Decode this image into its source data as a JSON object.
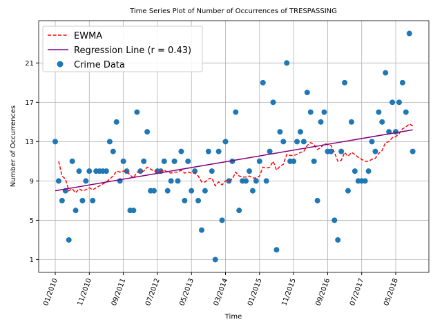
{
  "chart_data": {
    "type": "line",
    "title": "Time Series Plot of Number of Occurrences of TRESPASSING",
    "xlabel": "Time",
    "ylabel": "Number of Occurrences",
    "x": [
      "01/2010",
      "02/2010",
      "03/2010",
      "04/2010",
      "05/2010",
      "06/2010",
      "07/2010",
      "08/2010",
      "09/2010",
      "10/2010",
      "11/2010",
      "12/2010",
      "01/2011",
      "02/2011",
      "03/2011",
      "04/2011",
      "05/2011",
      "06/2011",
      "07/2011",
      "08/2011",
      "09/2011",
      "10/2011",
      "11/2011",
      "12/2011",
      "01/2012",
      "02/2012",
      "03/2012",
      "04/2012",
      "05/2012",
      "06/2012",
      "07/2012",
      "08/2012",
      "09/2012",
      "10/2012",
      "11/2012",
      "12/2012",
      "01/2013",
      "02/2013",
      "03/2013",
      "04/2013",
      "05/2013",
      "06/2013",
      "07/2013",
      "08/2013",
      "09/2013",
      "10/2013",
      "11/2013",
      "12/2013",
      "01/2014",
      "02/2014",
      "03/2014",
      "04/2014",
      "05/2014",
      "06/2014",
      "07/2014",
      "08/2014",
      "09/2014",
      "10/2014",
      "11/2014",
      "12/2014",
      "01/2015",
      "02/2015",
      "03/2015",
      "04/2015",
      "05/2015",
      "06/2015",
      "07/2015",
      "08/2015",
      "09/2015",
      "10/2015",
      "11/2015",
      "12/2015",
      "01/2016",
      "02/2016",
      "03/2016",
      "04/2016",
      "05/2016",
      "06/2016",
      "07/2016",
      "08/2016",
      "09/2016",
      "10/2016",
      "11/2016",
      "12/2016",
      "01/2017",
      "02/2017",
      "03/2017",
      "04/2017",
      "05/2017",
      "06/2017",
      "07/2017",
      "08/2017",
      "09/2017",
      "10/2017",
      "11/2017",
      "12/2017",
      "01/2018",
      "02/2018",
      "03/2018",
      "04/2018",
      "05/2018",
      "06/2018",
      "07/2018",
      "08/2018",
      "09/2018",
      "10/2018"
    ],
    "series": [
      {
        "name": "EWMA",
        "type": "line",
        "dash": true,
        "color": "#ff0000",
        "values": [
          null,
          11.0,
          9.5,
          9.2,
          8.0,
          8.2,
          7.8,
          8.2,
          8.0,
          8.1,
          8.3,
          8.1,
          8.3,
          8.5,
          8.7,
          8.9,
          9.2,
          9.5,
          10.0,
          9.9,
          10.0,
          10.0,
          9.6,
          9.3,
          9.9,
          9.9,
          10.0,
          10.4,
          10.2,
          10.0,
          10.0,
          10.0,
          10.1,
          9.9,
          9.8,
          9.9,
          9.9,
          10.1,
          9.8,
          9.9,
          9.8,
          9.8,
          9.5,
          8.9,
          8.9,
          9.2,
          9.3,
          8.5,
          8.9,
          8.6,
          9.0,
          9.0,
          9.2,
          9.9,
          9.5,
          9.4,
          9.4,
          9.5,
          9.3,
          9.3,
          9.5,
          10.4,
          10.3,
          10.4,
          11.0,
          10.1,
          10.5,
          10.7,
          11.7,
          11.6,
          11.6,
          11.7,
          11.9,
          12.0,
          12.6,
          12.9,
          12.7,
          12.2,
          12.4,
          12.8,
          12.7,
          12.6,
          11.9,
          11.0,
          11.1,
          11.9,
          11.5,
          11.9,
          11.7,
          11.4,
          11.2,
          11.0,
          11.0,
          11.2,
          11.3,
          11.8,
          12.1,
          12.9,
          13.0,
          13.4,
          13.5,
          13.8,
          14.3,
          14.5,
          14.8,
          14.6
        ]
      },
      {
        "name": "Regression Line (r = 0.43)",
        "type": "line",
        "color": "#800080",
        "x": [
          "01/2010",
          "10/2018"
        ],
        "values": [
          8.0,
          14.2
        ]
      },
      {
        "name": "Crime Data",
        "type": "scatter",
        "color": "#1f77b4",
        "values": [
          13,
          9,
          7,
          8,
          3,
          11,
          6,
          10,
          7,
          9,
          10,
          7,
          10,
          10,
          10,
          10,
          13,
          12,
          15,
          9,
          11,
          10,
          6,
          6,
          16,
          10,
          11,
          14,
          8,
          8,
          10,
          10,
          11,
          8,
          9,
          11,
          9,
          12,
          7,
          11,
          8,
          10,
          7,
          4,
          8,
          12,
          10,
          1,
          12,
          5,
          13,
          9,
          11,
          16,
          6,
          9,
          9,
          10,
          8,
          9,
          11,
          19,
          9,
          12,
          17,
          2,
          14,
          13,
          21,
          11,
          11,
          13,
          14,
          13,
          18,
          16,
          11,
          7,
          15,
          16,
          12,
          12,
          5,
          3,
          12,
          19,
          8,
          15,
          10,
          9,
          9,
          9,
          10,
          13,
          12,
          16,
          15,
          20,
          14,
          17,
          14,
          17,
          19,
          16,
          24,
          12
        ]
      }
    ],
    "ylim": [
      -0.3,
      25.3
    ],
    "yticks": [
      1,
      5,
      9,
      13,
      17,
      21
    ],
    "xticks": [
      "01/2010",
      "11/2010",
      "09/2011",
      "07/2012",
      "05/2013",
      "03/2014",
      "01/2015",
      "11/2015",
      "09/2016",
      "07/2017",
      "05/2018"
    ],
    "grid": true,
    "legend": "upper left"
  }
}
